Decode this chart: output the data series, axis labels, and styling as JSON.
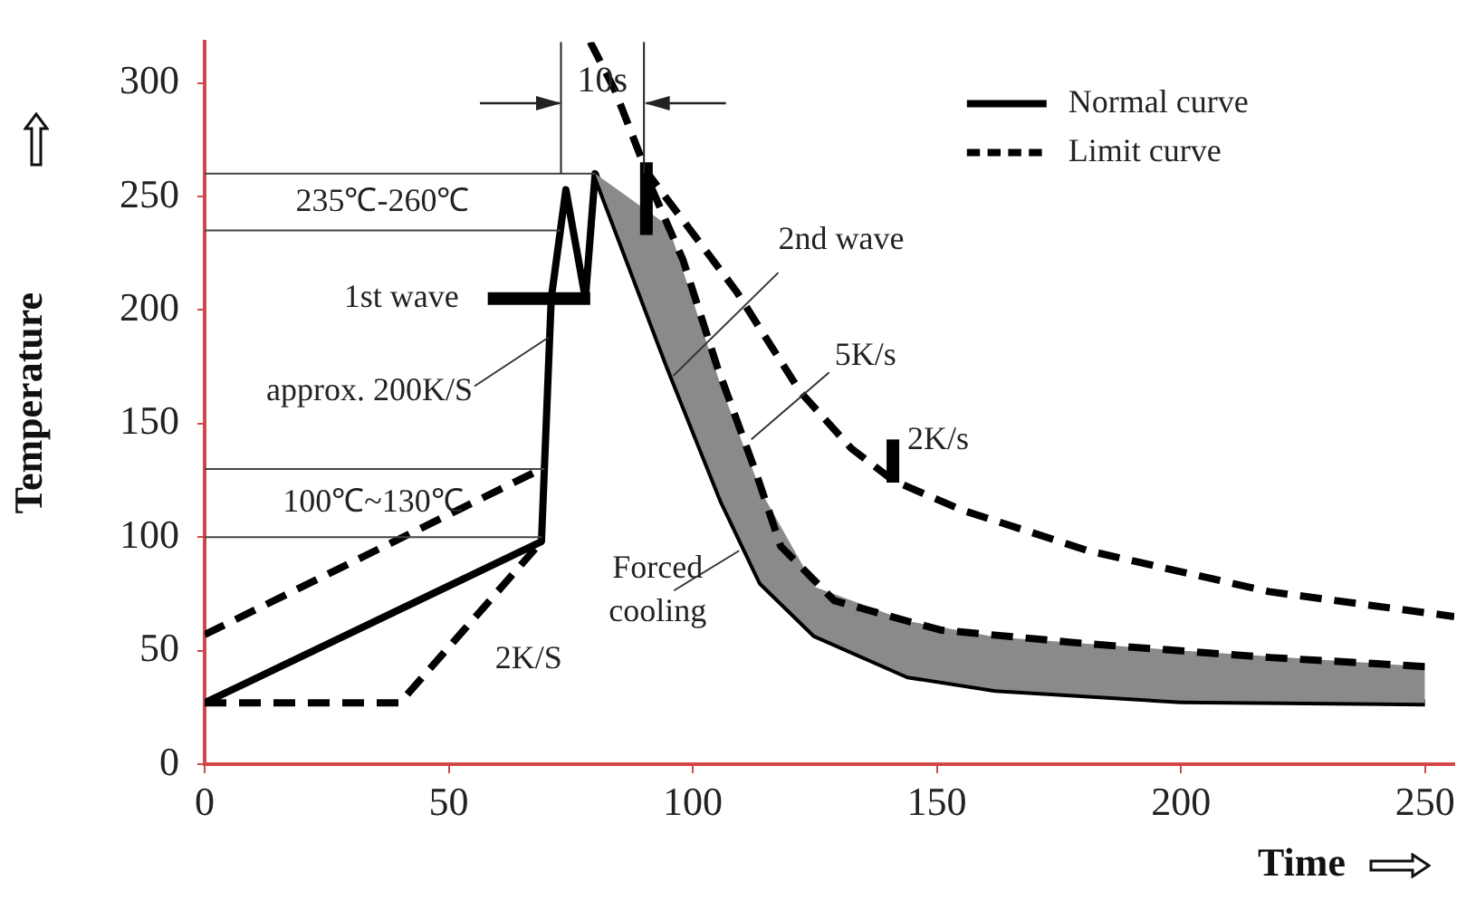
{
  "chart_data": {
    "type": "line",
    "xlabel": "Time",
    "ylabel": "Temperature",
    "xlim": [
      0,
      256
    ],
    "xticks": [
      0,
      50,
      100,
      150,
      200,
      250
    ],
    "ylim": [
      0,
      318
    ],
    "yticks": [
      0,
      50,
      100,
      150,
      200,
      250,
      300
    ],
    "grid": false,
    "legend": "top right",
    "line_style": "solid",
    "marker": "none",
    "series": [
      {
        "name": "Normal curve",
        "color": "#000000",
        "x": [
          0,
          69,
          71,
          74,
          78,
          80,
          95,
          106,
          114,
          125,
          144,
          162,
          200,
          250
        ],
        "values": [
          27,
          98,
          205,
          253,
          205,
          260,
          175,
          116,
          80,
          57,
          39,
          33,
          28,
          27
        ],
        "lower": [
          null,
          null,
          null,
          null,
          null,
          260,
          175,
          116,
          80,
          57,
          39,
          33,
          28,
          27
        ],
        "upper": [
          null,
          null,
          null,
          null,
          null,
          260,
          237,
          165,
          120,
          78,
          63,
          56,
          50,
          43
        ]
      },
      {
        "name": "Limit curve",
        "color": "#000000",
        "line_style": "dashed",
        "x": [
          0,
          40,
          69,
          null,
          0,
          69,
          null,
          79,
          84,
          90.5,
          109,
          122,
          132.5,
          141,
          155,
          181,
          218,
          256,
          null,
          91.5,
          98,
          105,
          113,
          118,
          129,
          144,
          151,
          181,
          218,
          250
        ],
        "values": [
          27,
          27,
          98,
          null,
          57,
          130,
          null,
          318,
          297,
          261,
          208,
          164,
          139,
          125,
          112,
          94,
          76,
          65,
          null,
          254,
          222,
          175,
          128,
          96,
          72,
          63,
          59,
          53,
          47,
          43
        ]
      },
      {
        "color": "#000000",
        "x": [
          58,
          79
        ],
        "values": [
          205,
          205
        ]
      },
      {
        "color": "#000000",
        "x": [
          90.5,
          90.5
        ],
        "values": [
          233,
          265
        ]
      },
      {
        "color": "#000000",
        "x": [
          141,
          141
        ],
        "values": [
          124,
          143
        ]
      }
    ],
    "ref_lines": [
      {
        "axis": "y",
        "value": 260
      },
      {
        "axis": "y",
        "value": 235,
        "label": "235℃-260℃"
      },
      {
        "axis": "y",
        "value": 130
      },
      {
        "axis": "y",
        "value": 100,
        "label": "100℃~130℃"
      },
      {
        "axis": "x",
        "value": 73,
        "label": "10s"
      },
      {
        "axis": "x",
        "value": 90
      }
    ],
    "annotations": [
      {
        "text": "1st wave",
        "x": 58,
        "y": 205
      },
      {
        "text": "approx. 200K/S",
        "x": 70.5,
        "y": 188
      },
      {
        "text": "2nd wave",
        "x": 96,
        "y": 171
      },
      {
        "text": "5K/s",
        "x": 112,
        "y": 143
      },
      {
        "text": "2K/s",
        "x": 141,
        "y": 124
      },
      {
        "text": "2K/S",
        "x": 58,
        "y": 65
      },
      {
        "text": "Forced cooling",
        "x": 109.5,
        "y": 94
      }
    ]
  }
}
